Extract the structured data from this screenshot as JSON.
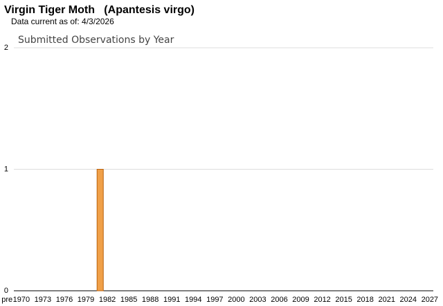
{
  "chart_data": {
    "type": "bar",
    "title": "Virgin Tiger Moth   (Apantesis virgo)",
    "subtitle": "Data current as of: 4/3/2026",
    "chart_title": "Submitted Observations by Year",
    "categories": [
      "pre",
      null,
      "1970",
      null,
      null,
      "1973",
      null,
      null,
      "1976",
      null,
      null,
      "1979",
      null,
      null,
      "1982",
      null,
      null,
      "1985",
      null,
      null,
      "1988",
      null,
      null,
      "1991",
      null,
      null,
      "1994",
      null,
      null,
      "1997",
      null,
      null,
      "2000",
      null,
      null,
      "2003",
      null,
      null,
      "2006",
      null,
      null,
      "2009",
      null,
      null,
      "2012",
      null,
      null,
      "2015",
      null,
      null,
      "2018",
      null,
      null,
      "2021",
      null,
      null,
      "2024",
      null,
      null,
      "2027"
    ],
    "values": [
      0,
      0,
      0,
      0,
      0,
      0,
      0,
      0,
      0,
      0,
      0,
      0,
      0,
      1,
      0,
      0,
      0,
      0,
      0,
      0,
      0,
      0,
      0,
      0,
      0,
      0,
      0,
      0,
      0,
      0,
      0,
      0,
      0,
      0,
      0,
      0,
      0,
      0,
      0,
      0,
      0,
      0,
      0,
      0,
      0,
      0,
      0,
      0,
      0,
      0,
      0,
      0,
      0,
      0,
      0,
      0,
      0,
      0,
      0,
      0
    ],
    "color": "#f0a048",
    "edge_color": "#b8600c",
    "ylim": [
      0,
      2
    ],
    "yticks": [
      0,
      1,
      2
    ],
    "grid": true
  }
}
